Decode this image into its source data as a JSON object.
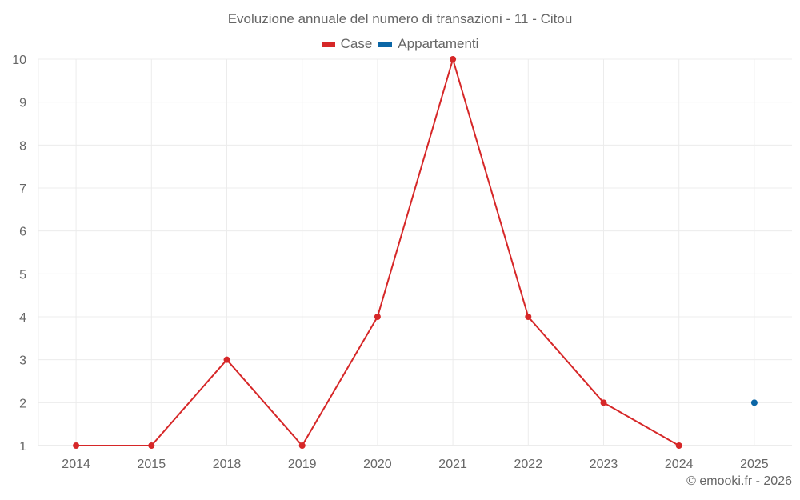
{
  "chart_data": {
    "type": "line",
    "title": "Evoluzione annuale del numero di transazioni - 11 - Citou",
    "categories": [
      "2014",
      "2015",
      "2018",
      "2019",
      "2020",
      "2021",
      "2022",
      "2023",
      "2024",
      "2025"
    ],
    "series": [
      {
        "name": "Case",
        "color": "#d62728",
        "values": [
          1,
          1,
          3,
          1,
          4,
          10,
          4,
          2,
          1,
          null
        ]
      },
      {
        "name": "Appartamenti",
        "color": "#0b66a6",
        "values": [
          null,
          null,
          null,
          null,
          null,
          null,
          null,
          null,
          null,
          2
        ]
      }
    ],
    "xlabel": "",
    "ylabel": "",
    "ylim": [
      1,
      10
    ],
    "yticks": [
      1,
      2,
      3,
      4,
      5,
      6,
      7,
      8,
      9,
      10
    ],
    "grid": true,
    "legend_position": "top-center"
  },
  "header": {
    "title": "Evoluzione annuale del numero di transazioni - 11 - Citou"
  },
  "legend": {
    "items": [
      {
        "label": "Case",
        "color": "#d62728"
      },
      {
        "label": "Appartamenti",
        "color": "#0b66a6"
      }
    ]
  },
  "footer": {
    "credit": "© emooki.fr - 2026"
  }
}
